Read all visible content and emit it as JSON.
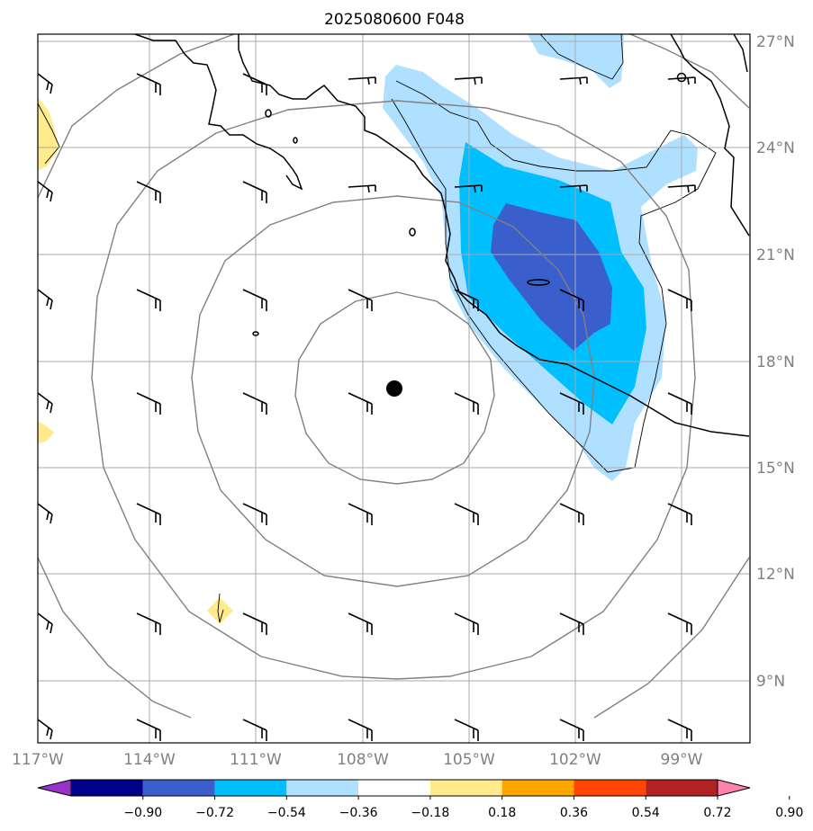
{
  "title": "2025080600 F048",
  "lat_labels": [
    "27°N",
    "24°N",
    "21°N",
    "18°N",
    "15°N",
    "12°N",
    "9°N"
  ],
  "lon_labels": [
    "117°W",
    "114°W",
    "111°W",
    "108°W",
    "105°W",
    "102°W",
    "99°W"
  ],
  "colorbar": {
    "tick_labels": [
      "−0.90",
      "−0.72",
      "−0.54",
      "−0.36",
      "−0.18",
      "0.18",
      "0.36",
      "0.54",
      "0.72",
      "0.90"
    ],
    "colors": [
      "#9932cc",
      "#00008b",
      "#3a5fcd",
      "#00bfff",
      "#b0e0ff",
      "#ffffff",
      "#ffeb8c",
      "#ffa500",
      "#ff4500",
      "#b22222",
      "#ff82ab"
    ]
  },
  "map": {
    "lon_range": [
      -117,
      -97
    ],
    "lat_range": [
      7,
      27
    ],
    "center_marker": {
      "lon": -107,
      "lat": 17.2
    },
    "range_rings": 4,
    "gridline_color": "#aaaaaa",
    "ring_color": "#808080"
  }
}
